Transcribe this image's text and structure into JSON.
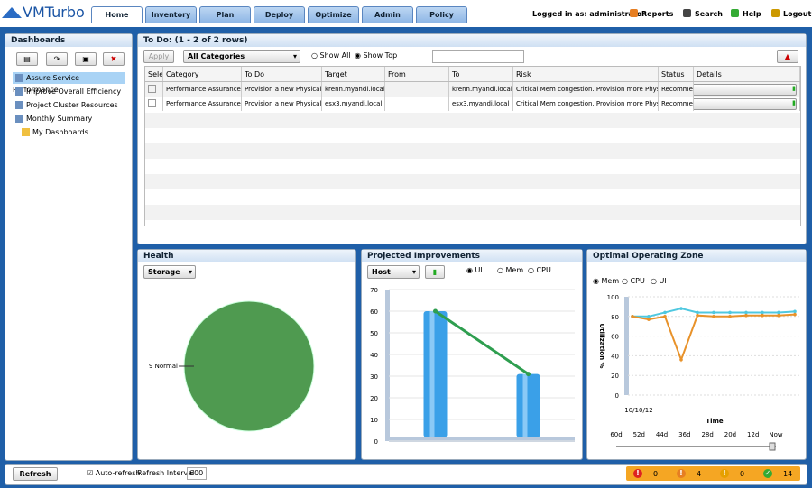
{
  "header": {
    "logo": "VMTurbo",
    "tabs": [
      "Home",
      "Inventory",
      "Plan",
      "Deploy",
      "Optimize",
      "Admin",
      "Policy"
    ],
    "logged_in": "Logged in as: administrator",
    "links": [
      "Reports",
      "Search",
      "Help",
      "Logout"
    ]
  },
  "sidebar": {
    "title": "Dashboards",
    "items": [
      "Assure Service Performance",
      "Improve Overall Efficiency",
      "Project Cluster Resources",
      "Monthly Summary",
      "My Dashboards"
    ]
  },
  "todo": {
    "title": "To Do: (1 - 2 of 2 rows)",
    "apply": "Apply",
    "filter": "All Categories",
    "show_all": "Show All",
    "show_top": "Show Top",
    "columns": [
      "Sele",
      "Category",
      "To Do",
      "Target",
      "From",
      "To",
      "Risk",
      "Status",
      "Details"
    ],
    "rows": [
      {
        "category": "Performance Assurance",
        "todo": "Provision a new Physical M",
        "target": "krenn.myandi.local",
        "to": "krenn.myandi.local",
        "risk": "Critical Mem congestion. Provision more Physical M",
        "status": "Recommended"
      },
      {
        "category": "Performance Assurance",
        "todo": "Provision a new Physical M",
        "target": "esx3.myandi.local",
        "to": "esx3.myandi.local",
        "risk": "Critical Mem congestion. Provision more Physical M",
        "status": "Recommended"
      }
    ]
  },
  "health": {
    "title": "Health",
    "dropdown": "Storage",
    "chart_data": {
      "type": "pie",
      "values": [
        9
      ],
      "value_labels": [
        "9 Normal"
      ],
      "color": "#4f9a50"
    }
  },
  "projected": {
    "title": "Projected Improvements",
    "dropdown": "Host",
    "radios": [
      "UI",
      "Mem",
      "CPU"
    ],
    "chart_data": {
      "type": "bar",
      "values": [
        60,
        31
      ],
      "color": "#3aa0e8",
      "line_color": "#2e9e4f",
      "ylim": [
        0,
        70
      ],
      "yticks": [
        0,
        10,
        20,
        30,
        40,
        50,
        60,
        70
      ]
    }
  },
  "optimal": {
    "title": "Optimal Operating Zone",
    "radios": [
      "Mem",
      "CPU",
      "UI"
    ],
    "chart_data": {
      "type": "line",
      "ylabel": "Utilization %",
      "xlabel": "Time",
      "x_start": "10/10/12",
      "ylim": [
        0,
        100
      ],
      "yticks": [
        0,
        20,
        40,
        60,
        80,
        100
      ],
      "series": [
        {
          "color": "#4fc8e0",
          "values": [
            80,
            80,
            84,
            88,
            84,
            84,
            84,
            84,
            84,
            84,
            85
          ]
        },
        {
          "color": "#e8922a",
          "values": [
            80,
            77,
            80,
            36,
            81,
            80,
            80,
            81,
            81,
            81,
            82
          ]
        }
      ]
    },
    "slider": [
      "60d",
      "52d",
      "44d",
      "36d",
      "28d",
      "20d",
      "12d",
      "Now"
    ]
  },
  "footer": {
    "refresh": "Refresh",
    "auto_refresh": "Auto-refresh",
    "interval_label": "Refresh Interval",
    "interval": "600",
    "counts": [
      0,
      4,
      0,
      14
    ]
  }
}
